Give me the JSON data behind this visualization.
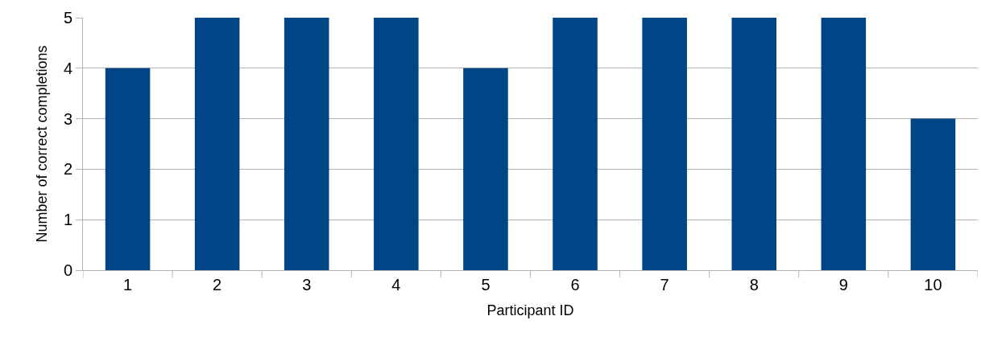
{
  "chart_data": {
    "type": "bar",
    "xlabel": "Participant ID",
    "ylabel": "Number of correct completions",
    "categories": [
      "1",
      "2",
      "3",
      "4",
      "5",
      "6",
      "7",
      "8",
      "9",
      "10"
    ],
    "values": [
      4,
      5,
      5,
      5,
      4,
      5,
      5,
      5,
      5,
      3
    ],
    "color": "#004586",
    "ylim": [
      0,
      5
    ],
    "yticks": [
      0,
      1,
      2,
      3,
      4,
      5
    ],
    "grid": "y",
    "legend": false
  }
}
